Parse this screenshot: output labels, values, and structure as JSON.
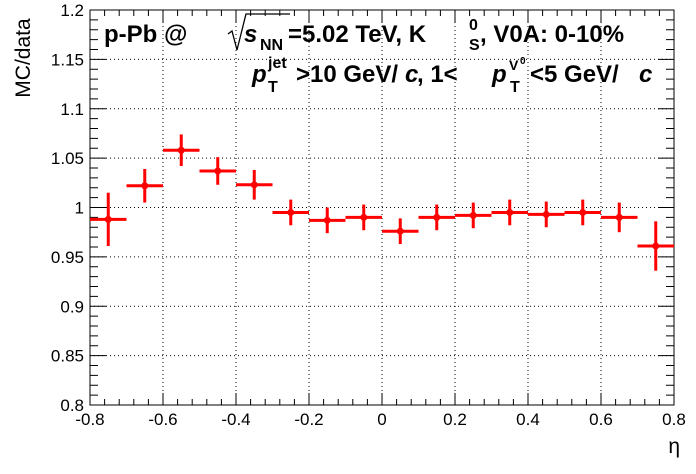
{
  "chart_data": {
    "type": "scatter",
    "xlabel": "η",
    "ylabel": "MC/data",
    "xlim": [
      -0.8,
      0.8
    ],
    "ylim": [
      0.8,
      1.2
    ],
    "x_ticks": [
      "-0.8",
      "-0.6",
      "-0.4",
      "-0.2",
      "0",
      "0.2",
      "0.4",
      "0.6",
      "0.8"
    ],
    "y_ticks": [
      "0.8",
      "0.85",
      "0.9",
      "0.95",
      "1",
      "1.05",
      "1.1",
      "1.15",
      "1.2"
    ],
    "grid": true,
    "marker_color": "#ff0000",
    "annotation": {
      "line1_prefix": "p-Pb @ ",
      "line1_s": "s",
      "line1_nn": "NN",
      "line1_mid": "=5.02 TeV, K",
      "line1_zero": "0",
      "line1_S": "S",
      "line1_suffix": ", V0A: 0-10%",
      "line2_p1": "p",
      "line2_jet": "jet",
      "line2_T1": "T",
      "line2_mid": ">10 GeV/",
      "line2_c1": "c",
      "line2_comma": ", 1<",
      "line2_p2": "p",
      "line2_V": "V",
      "line2_Vzero": "0",
      "line2_T2": "T",
      "line2_end": "<5 GeV/",
      "line2_c2": "c"
    },
    "points": [
      {
        "x": -0.75,
        "xerr": 0.05,
        "y": 0.988,
        "yerr": 0.027
      },
      {
        "x": -0.65,
        "xerr": 0.05,
        "y": 1.022,
        "yerr": 0.017
      },
      {
        "x": -0.55,
        "xerr": 0.05,
        "y": 1.058,
        "yerr": 0.016
      },
      {
        "x": -0.45,
        "xerr": 0.05,
        "y": 1.037,
        "yerr": 0.014
      },
      {
        "x": -0.35,
        "xerr": 0.05,
        "y": 1.023,
        "yerr": 0.015
      },
      {
        "x": -0.25,
        "xerr": 0.05,
        "y": 0.995,
        "yerr": 0.013
      },
      {
        "x": -0.15,
        "xerr": 0.05,
        "y": 0.987,
        "yerr": 0.013
      },
      {
        "x": -0.05,
        "xerr": 0.05,
        "y": 0.99,
        "yerr": 0.013
      },
      {
        "x": 0.05,
        "xerr": 0.05,
        "y": 0.976,
        "yerr": 0.013
      },
      {
        "x": 0.15,
        "xerr": 0.05,
        "y": 0.99,
        "yerr": 0.013
      },
      {
        "x": 0.25,
        "xerr": 0.05,
        "y": 0.992,
        "yerr": 0.013
      },
      {
        "x": 0.35,
        "xerr": 0.05,
        "y": 0.995,
        "yerr": 0.013
      },
      {
        "x": 0.45,
        "xerr": 0.05,
        "y": 0.993,
        "yerr": 0.013
      },
      {
        "x": 0.55,
        "xerr": 0.05,
        "y": 0.995,
        "yerr": 0.013
      },
      {
        "x": 0.65,
        "xerr": 0.05,
        "y": 0.99,
        "yerr": 0.015
      },
      {
        "x": 0.75,
        "xerr": 0.05,
        "y": 0.961,
        "yerr": 0.025
      }
    ]
  }
}
